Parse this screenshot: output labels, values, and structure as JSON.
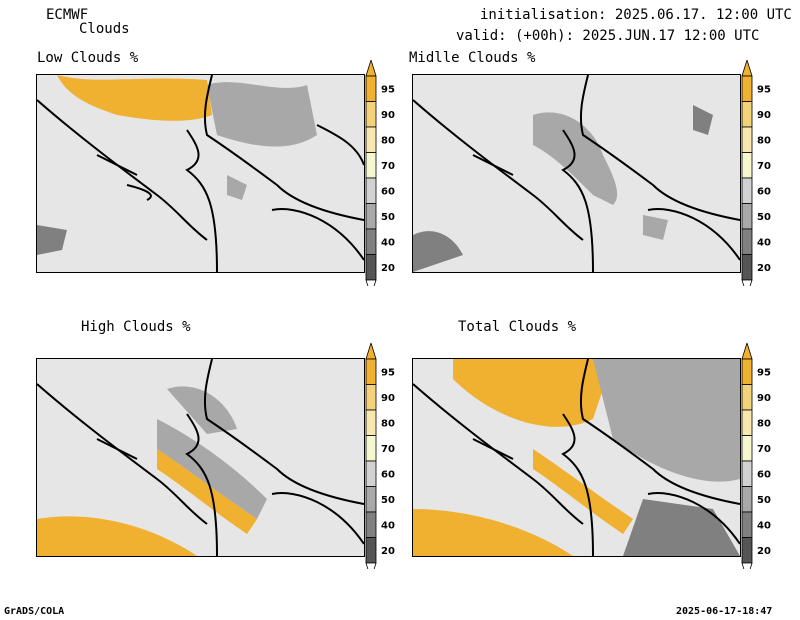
{
  "header": {
    "model": "ECMWF",
    "product": "Clouds",
    "init": "initialisation: 2025.06.17. 12:00 UTC",
    "valid": "valid: (+00h): 2025.JUN.17 12:00 UTC"
  },
  "panels": [
    {
      "title": "Low Clouds %"
    },
    {
      "title": "Midlle Clouds %"
    },
    {
      "title": "High Clouds %"
    },
    {
      "title": "Total Clouds %"
    }
  ],
  "colorbar": {
    "levels": [
      "95",
      "90",
      "80",
      "70",
      "60",
      "50",
      "40",
      "20"
    ],
    "colors": [
      "#f0b030",
      "#f4d27a",
      "#f8e8b0",
      "#f8f8d0",
      "#d2d2d2",
      "#a8a8a8",
      "#808080",
      "#555555"
    ]
  },
  "footer": {
    "left": "GrADS/COLA",
    "right": "2025-06-17-18:47"
  }
}
